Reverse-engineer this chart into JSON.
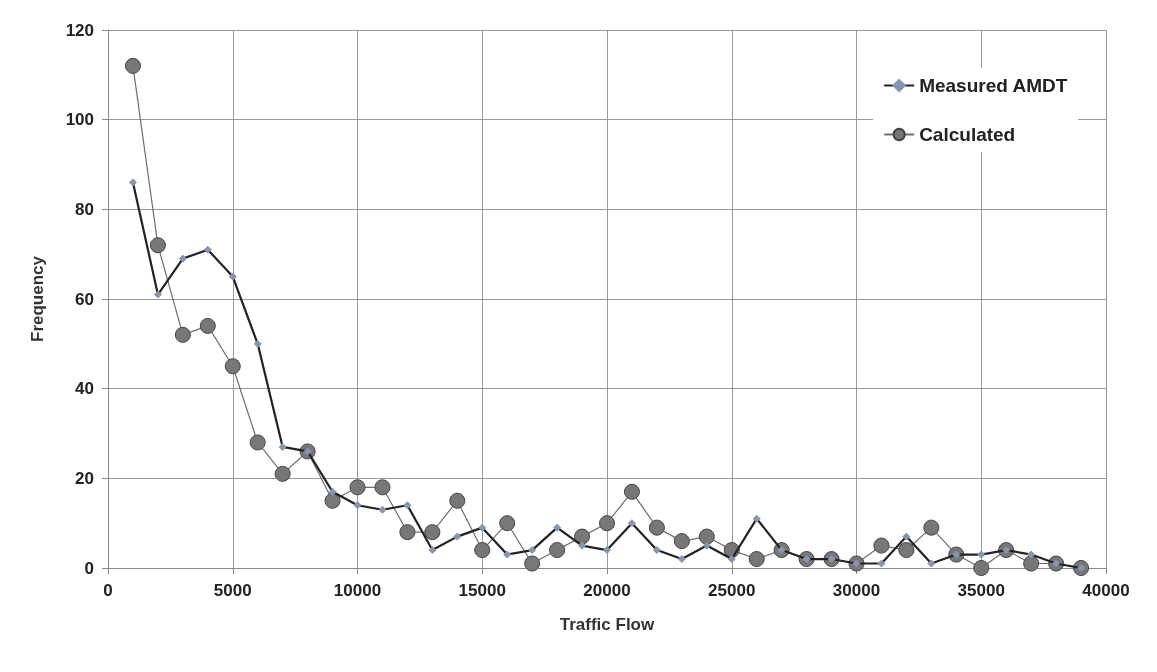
{
  "chart_data": {
    "type": "line",
    "xlabel": "Traffic Flow",
    "ylabel": "Frequency",
    "x": [
      1000,
      2000,
      3000,
      4000,
      5000,
      6000,
      7000,
      8000,
      9000,
      10000,
      11000,
      12000,
      13000,
      14000,
      15000,
      16000,
      17000,
      18000,
      19000,
      20000,
      21000,
      22000,
      23000,
      24000,
      25000,
      26000,
      27000,
      28000,
      29000,
      30000,
      31000,
      32000,
      33000,
      34000,
      35000,
      36000,
      37000,
      38000,
      39000
    ],
    "series": [
      {
        "name": "Measured AMDT",
        "color": "#222222",
        "marker": "diamond",
        "values": [
          86,
          61,
          69,
          71,
          65,
          50,
          27,
          26,
          17,
          14,
          13,
          14,
          4,
          7,
          9,
          3,
          4,
          9,
          5,
          4,
          10,
          4,
          2,
          5,
          2,
          11,
          4,
          2,
          2,
          1,
          1,
          7,
          1,
          3,
          3,
          4,
          3,
          1,
          0
        ]
      },
      {
        "name": "Calculated",
        "color": "#6e6e6e",
        "marker": "circle",
        "values": [
          112,
          72,
          52,
          54,
          45,
          28,
          21,
          26,
          15,
          18,
          18,
          8,
          8,
          15,
          4,
          10,
          1,
          4,
          7,
          10,
          17,
          9,
          6,
          7,
          4,
          2,
          4,
          2,
          2,
          1,
          5,
          4,
          9,
          3,
          0,
          4,
          1,
          1,
          0
        ]
      }
    ],
    "xlim": [
      0,
      40000
    ],
    "xticks": [
      0,
      5000,
      10000,
      15000,
      20000,
      25000,
      30000,
      35000,
      40000
    ],
    "ylim": [
      0,
      120
    ],
    "yticks": [
      0,
      20,
      40,
      60,
      80,
      100,
      120
    ],
    "grid": true,
    "legend": "top right"
  }
}
